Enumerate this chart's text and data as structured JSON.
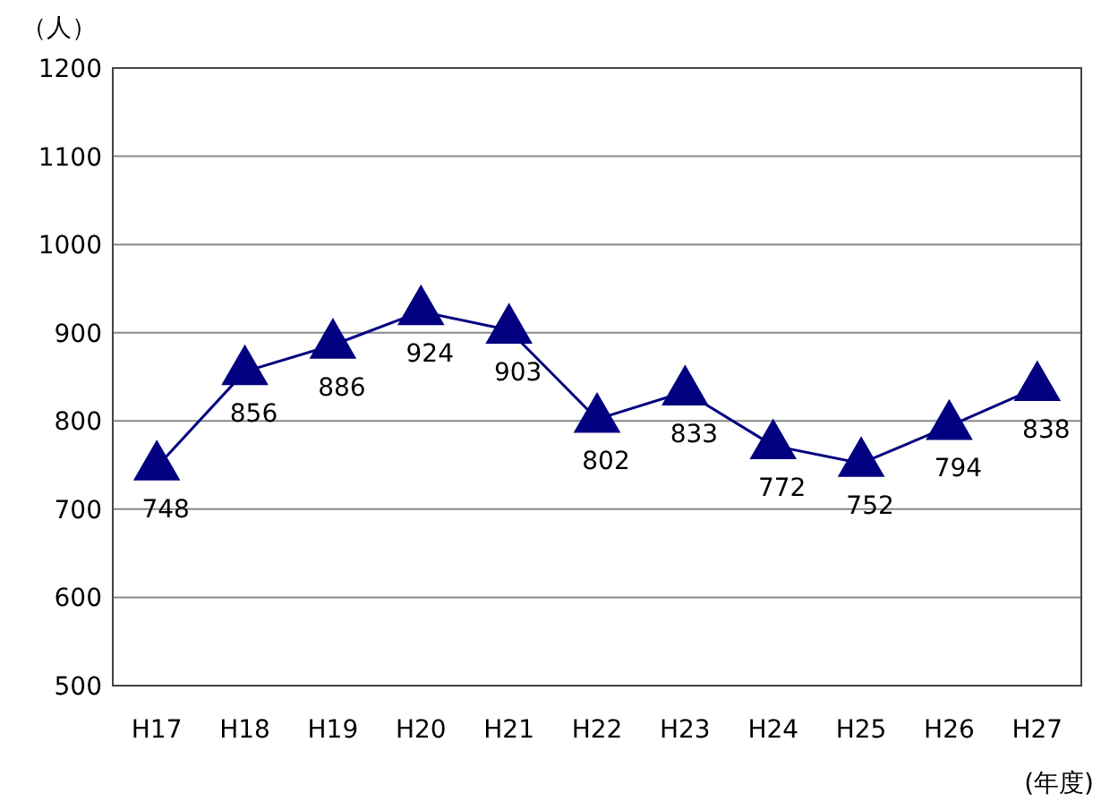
{
  "chart_data": {
    "type": "line",
    "ylabel": "（人）",
    "xlabel": "(年度)",
    "categories": [
      "H17",
      "H18",
      "H19",
      "H20",
      "H21",
      "H22",
      "H23",
      "H24",
      "H25",
      "H26",
      "H27"
    ],
    "series": [
      {
        "color": "#000080",
        "values": [
          748,
          856,
          886,
          924,
          903,
          802,
          833,
          772,
          752,
          794,
          838
        ]
      }
    ],
    "ylim": [
      500,
      1200
    ],
    "yticks": [
      500,
      600,
      700,
      800,
      900,
      1000,
      1100,
      1200
    ],
    "grid": "y",
    "marker": "triangle",
    "line_style": "solid",
    "data_labels": true
  }
}
